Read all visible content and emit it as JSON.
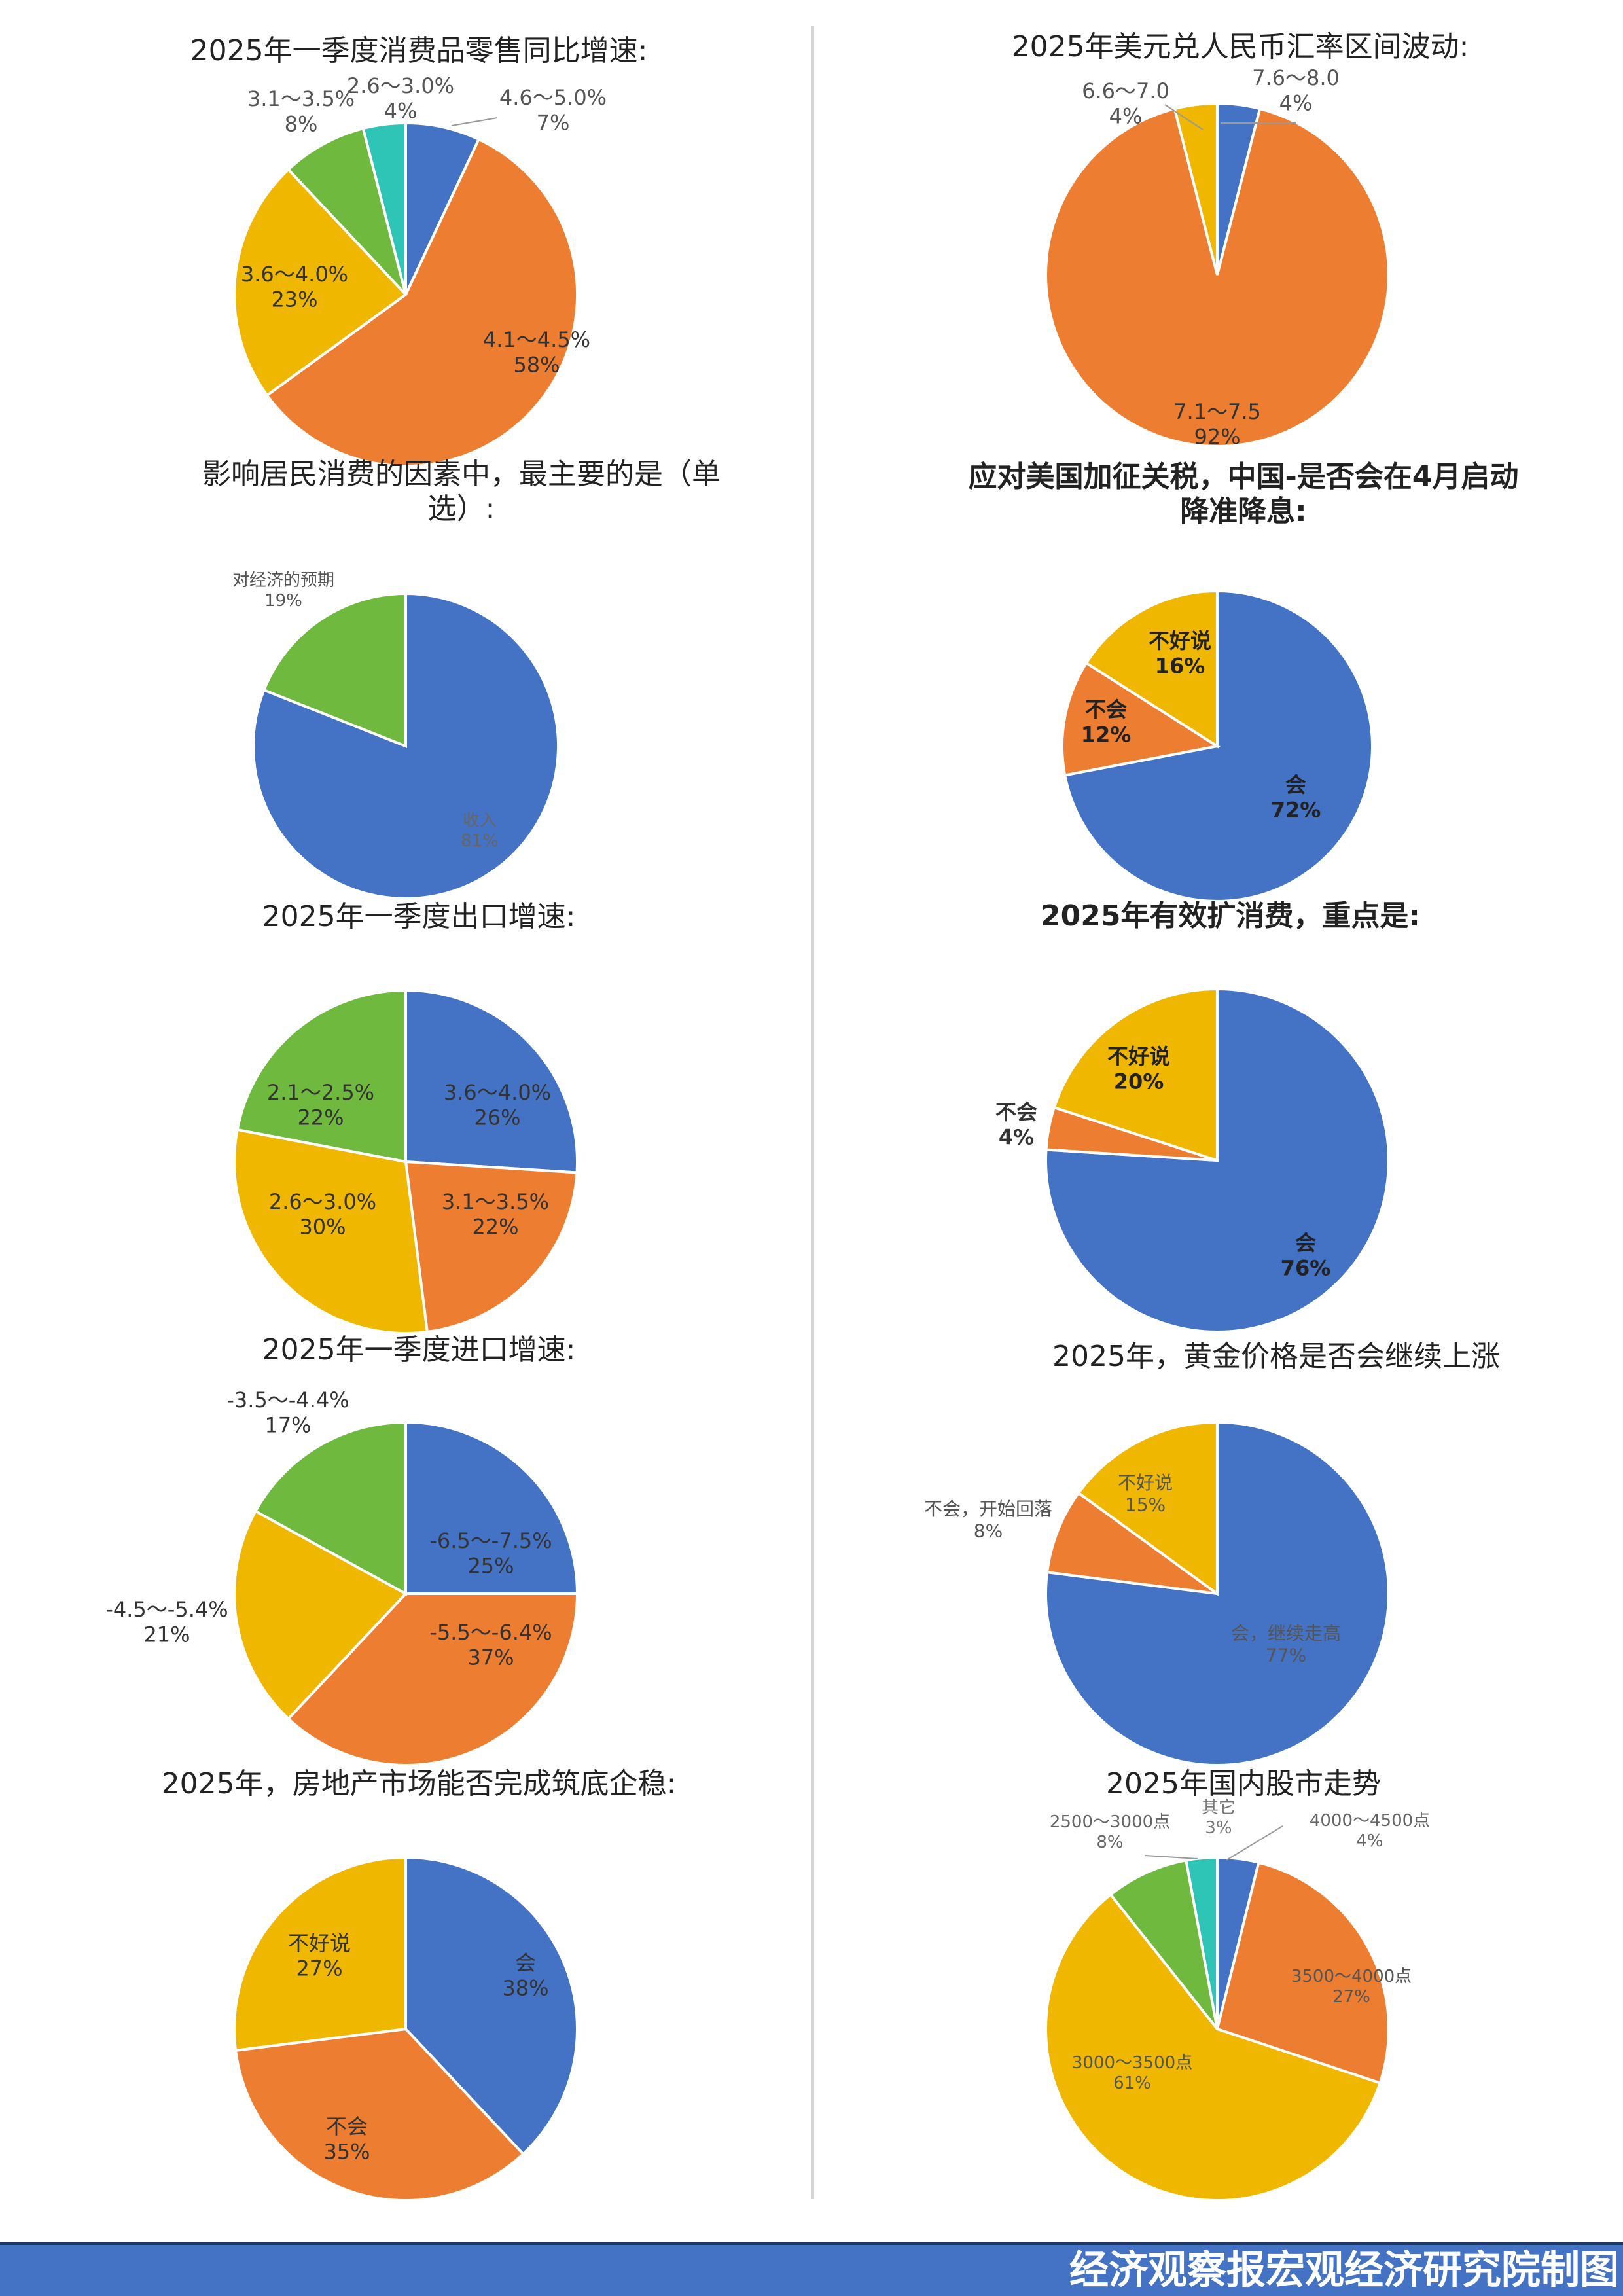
{
  "footer": {
    "text": "经济观察报宏观经济研究院制图"
  },
  "colors": {
    "blue": "#4472c4",
    "orange": "#ed7d31",
    "yellow": "#f0b700",
    "green": "#70b93f",
    "teal": "#2ec4b6",
    "footer_bg": "#4472c4"
  },
  "chart_data": [
    {
      "type": "pie",
      "title": "2025年一季度消费品零售同比增速:",
      "slices": [
        {
          "label": "4.6～5.0%",
          "pct": "7%",
          "value": 7,
          "color": "#4472c4"
        },
        {
          "label": "4.1～4.5%",
          "pct": "58%",
          "value": 58,
          "color": "#ed7d31"
        },
        {
          "label": "3.6～4.0%",
          "pct": "23%",
          "value": 23,
          "color": "#f0b700"
        },
        {
          "label": "3.1～3.5%",
          "pct": "8%",
          "value": 8,
          "color": "#70b93f"
        },
        {
          "label": "2.6～3.0%",
          "pct": "4%",
          "value": 4,
          "color": "#2ec4b6"
        }
      ]
    },
    {
      "type": "pie",
      "title": "2025年美元兑人民币汇率区间波动:",
      "slices": [
        {
          "label": "7.6～8.0",
          "pct": "4%",
          "value": 4,
          "color": "#4472c4"
        },
        {
          "label": "7.1～7.5",
          "pct": "92%",
          "value": 92,
          "color": "#ed7d31"
        },
        {
          "label": "6.6～7.0",
          "pct": "4%",
          "value": 4,
          "color": "#f0b700"
        }
      ]
    },
    {
      "type": "pie",
      "title": "影响居民消费的因素中，最主要的是（单选）:",
      "title_lines": [
        "影响居民消费的因素中，最主要的是（单",
        "选）:"
      ],
      "slices": [
        {
          "label": "收入",
          "pct": "81%",
          "value": 81,
          "color": "#4472c4"
        },
        {
          "label": "对经济的预期",
          "pct": "19%",
          "value": 19,
          "color": "#70b93f"
        }
      ]
    },
    {
      "type": "pie",
      "title": "应对美国加征关税，中国-是否会在4月启动降准降息:",
      "title_lines": [
        "应对美国加征关税，中国-是否会在4月启动",
        "降准降息:"
      ],
      "slices": [
        {
          "label": "会",
          "pct": "72%",
          "value": 72,
          "color": "#4472c4"
        },
        {
          "label": "不会",
          "pct": "12%",
          "value": 12,
          "color": "#ed7d31"
        },
        {
          "label": "不好说",
          "pct": "16%",
          "value": 16,
          "color": "#f0b700"
        }
      ]
    },
    {
      "type": "pie",
      "title": "2025年一季度出口增速:",
      "slices": [
        {
          "label": "3.6～4.0%",
          "pct": "26%",
          "value": 26,
          "color": "#4472c4"
        },
        {
          "label": "3.1～3.5%",
          "pct": "22%",
          "value": 22,
          "color": "#ed7d31"
        },
        {
          "label": "2.6～3.0%",
          "pct": "30%",
          "value": 30,
          "color": "#f0b700"
        },
        {
          "label": "2.1～2.5%",
          "pct": "22%",
          "value": 22,
          "color": "#70b93f"
        }
      ]
    },
    {
      "type": "pie",
      "title": "2025年有效扩消费，重点是:",
      "slices": [
        {
          "label": "会",
          "pct": "76%",
          "value": 76,
          "color": "#4472c4"
        },
        {
          "label": "不会",
          "pct": "4%",
          "value": 4,
          "color": "#ed7d31"
        },
        {
          "label": "不好说",
          "pct": "20%",
          "value": 20,
          "color": "#f0b700"
        }
      ]
    },
    {
      "type": "pie",
      "title": "2025年一季度进口增速:",
      "slices": [
        {
          "label": "-6.5～-7.5%",
          "pct": "25%",
          "value": 25,
          "color": "#4472c4"
        },
        {
          "label": "-5.5～-6.4%",
          "pct": "37%",
          "value": 37,
          "color": "#ed7d31"
        },
        {
          "label": "-4.5～-5.4%",
          "pct": "21%",
          "value": 21,
          "color": "#f0b700"
        },
        {
          "label": "-3.5～-4.4%",
          "pct": "17%",
          "value": 17,
          "color": "#70b93f"
        }
      ]
    },
    {
      "type": "pie",
      "title": "2025年，黄金价格是否会继续上涨",
      "slices": [
        {
          "label": "会，继续走高",
          "pct": "77%",
          "value": 77,
          "color": "#4472c4"
        },
        {
          "label": "不会，开始回落",
          "pct": "8%",
          "value": 8,
          "color": "#ed7d31"
        },
        {
          "label": "不好说",
          "pct": "15%",
          "value": 15,
          "color": "#f0b700"
        }
      ]
    },
    {
      "type": "pie",
      "title": "2025年，房地产市场能否完成筑底企稳:",
      "slices": [
        {
          "label": "会",
          "pct": "38%",
          "value": 38,
          "color": "#4472c4"
        },
        {
          "label": "不会",
          "pct": "35%",
          "value": 35,
          "color": "#ed7d31"
        },
        {
          "label": "不好说",
          "pct": "27%",
          "value": 27,
          "color": "#f0b700"
        }
      ]
    },
    {
      "type": "pie",
      "title": "2025年国内股市走势",
      "slices": [
        {
          "label": "4000～4500点",
          "pct": "4%",
          "value": 4,
          "color": "#4472c4"
        },
        {
          "label": "3500～4000点",
          "pct": "27%",
          "value": 27,
          "color": "#ed7d31"
        },
        {
          "label": "3000～3500点",
          "pct": "61%",
          "value": 61,
          "color": "#f0b700"
        },
        {
          "label": "2500～3000点",
          "pct": "8%",
          "value": 8,
          "color": "#70b93f"
        },
        {
          "label": "其它",
          "pct": "3%",
          "value": 3,
          "color": "#2ec4b6"
        }
      ]
    }
  ]
}
